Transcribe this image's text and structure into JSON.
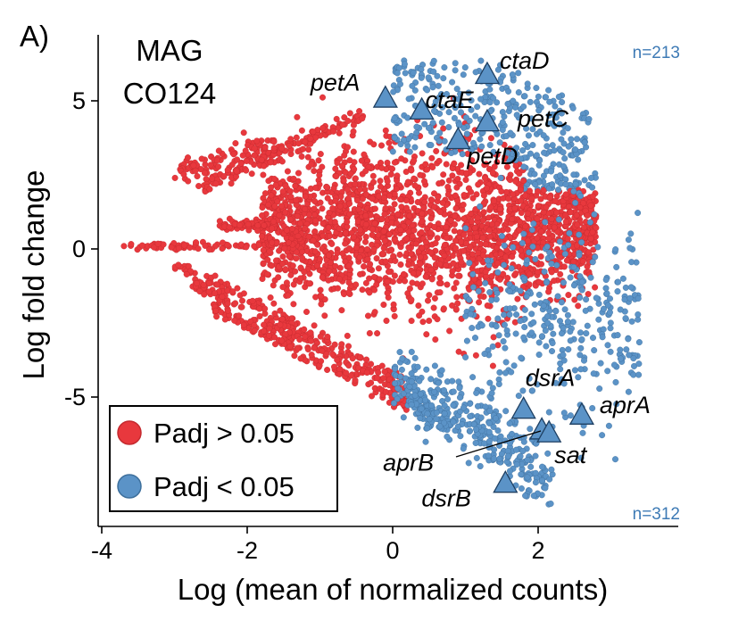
{
  "panel_label": "A)",
  "mag_label_line1": "MAG",
  "mag_label_line2": "CO124",
  "count_up": "n=213",
  "count_down": "n=312",
  "colors": {
    "nonsig": "#e8383d",
    "nonsig_edge": "#c42a2f",
    "sig": "#5b93c7",
    "sig_edge": "#3d6f9c"
  },
  "legend": {
    "nonsig_label": "Padj > 0.05",
    "sig_label": "Padj < 0.05"
  },
  "chart_data": {
    "type": "scatter",
    "title": "",
    "xlabel": "Log (mean of normalized counts)",
    "ylabel": "Log fold change",
    "xlim": [
      -4.1,
      3.9
    ],
    "ylim": [
      -9.4,
      7.2
    ],
    "x_ticks": [
      -4,
      -2,
      0,
      2
    ],
    "y_ticks": [
      -5,
      0,
      5
    ],
    "x_tick_labels": [
      "-4",
      "-2",
      "0",
      "2"
    ],
    "y_tick_labels": [
      "-5",
      "0",
      "5"
    ],
    "grid": false,
    "legend_position": "bottom-left",
    "series": [
      {
        "name": "Padj > 0.05",
        "color": "#e8383d"
      },
      {
        "name": "Padj < 0.05",
        "color": "#5b93c7"
      }
    ],
    "highlighted_genes": [
      {
        "gene": "petA",
        "x": -0.1,
        "y": 5.1
      },
      {
        "gene": "ctaD",
        "x": 1.3,
        "y": 5.9
      },
      {
        "gene": "ctaE",
        "x": 0.4,
        "y": 4.7
      },
      {
        "gene": "petC",
        "x": 1.3,
        "y": 4.3
      },
      {
        "gene": "petD",
        "x": 0.9,
        "y": 3.7
      },
      {
        "gene": "dsrA",
        "x": 1.8,
        "y": -5.4
      },
      {
        "gene": "aprA",
        "x": 2.6,
        "y": -5.6
      },
      {
        "gene": "aprB",
        "x": 2.05,
        "y": -6.1
      },
      {
        "gene": "sat",
        "x": 2.15,
        "y": -6.2
      },
      {
        "gene": "dsrB",
        "x": 1.55,
        "y": -7.9
      }
    ]
  }
}
